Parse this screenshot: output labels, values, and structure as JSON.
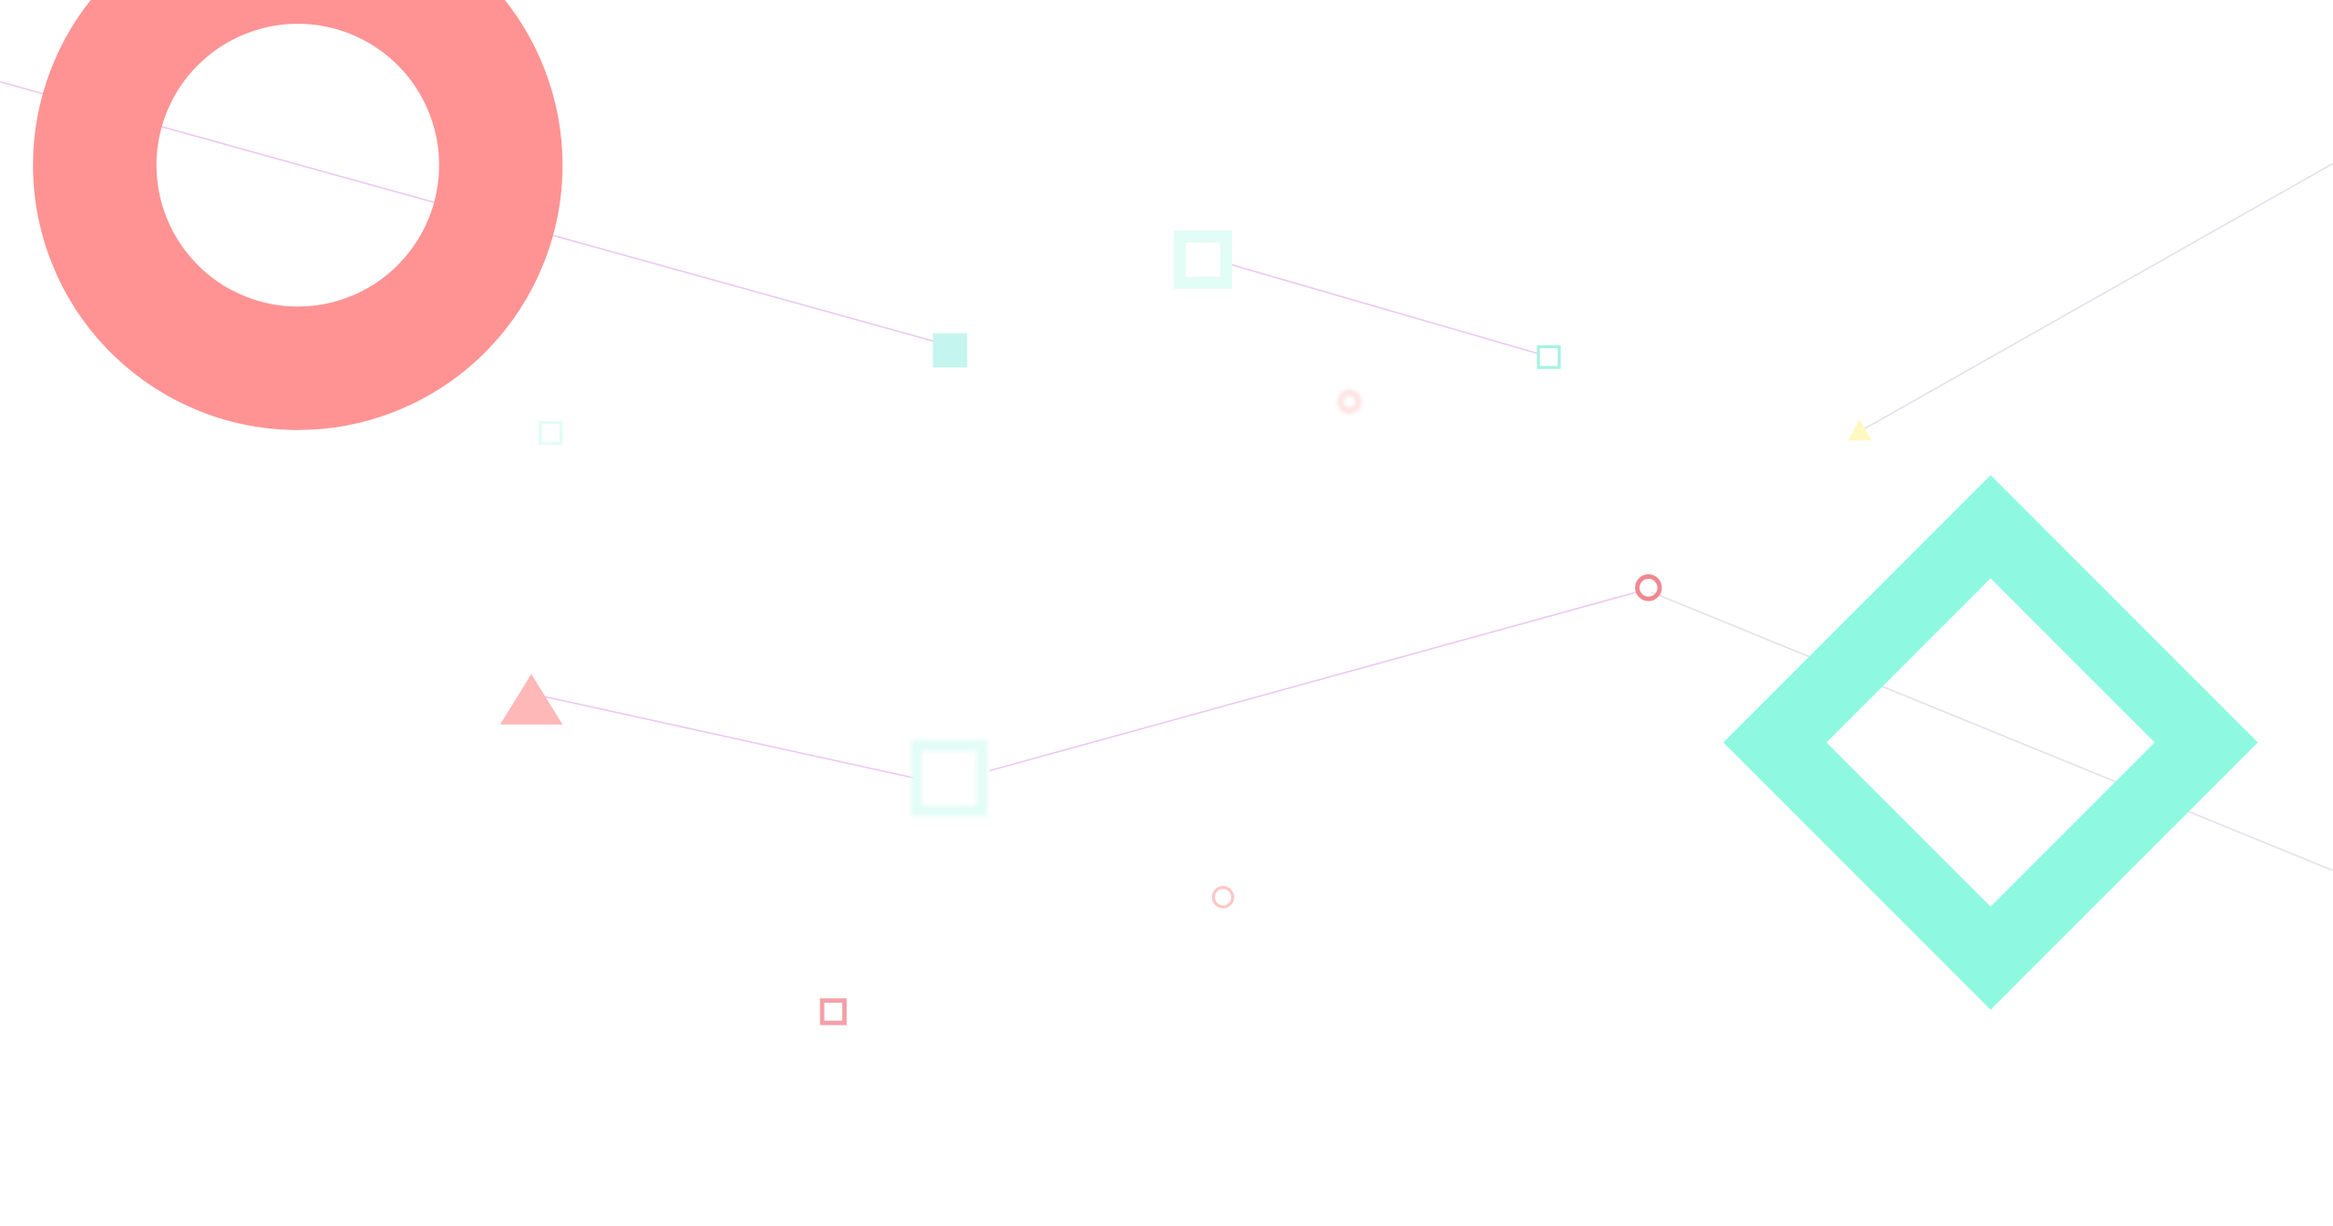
{
  "background": "#ffffff",
  "colors": {
    "ring": "#ff9393",
    "diamond": "#8ef9e0",
    "connector_line": "#ecc8f4",
    "connector_line_faint": "#e4e0ec",
    "teal_fill": "#c4f5ee",
    "teal_pale": "#e2fcf6",
    "teal_outline": "#a6f2e2",
    "pink_outline": "#f4a0a8",
    "pink_ring": "#f08890",
    "pink_ring_light": "#ffc6c6",
    "pink_triangle": "#ffb8b8",
    "yellow_triangle": "#fff8c0",
    "pink_glow": "#ffe0e0"
  }
}
